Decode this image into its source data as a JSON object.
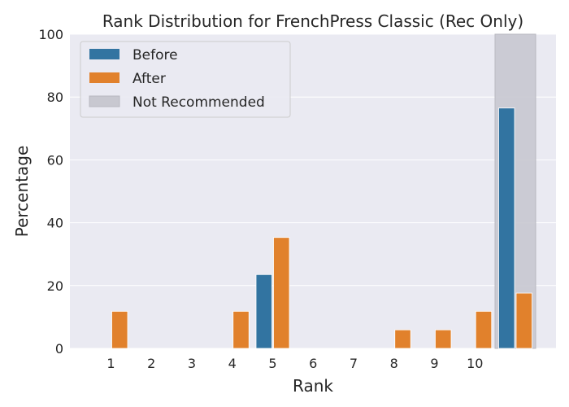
{
  "chart_data": {
    "type": "bar",
    "title": "Rank Distribution for FrenchPress Classic (Rec Only)",
    "xlabel": "Rank",
    "ylabel": "Percentage",
    "ylim": [
      0,
      100
    ],
    "yticks": [
      0,
      20,
      40,
      60,
      80,
      100
    ],
    "categories": [
      "1",
      "2",
      "3",
      "4",
      "5",
      "6",
      "7",
      "8",
      "9",
      "10",
      "Not Recommended"
    ],
    "tick_labels": [
      "1",
      "2",
      "3",
      "4",
      "5",
      "6",
      "7",
      "8",
      "9",
      "10",
      ""
    ],
    "series": [
      {
        "name": "Before",
        "color": "#3274a1",
        "values": [
          0,
          0,
          0,
          0,
          23.5,
          0,
          0,
          0,
          0,
          0,
          76.5
        ]
      },
      {
        "name": "After",
        "color": "#e1812c",
        "values": [
          11.8,
          0,
          0,
          11.8,
          35.3,
          0,
          0,
          5.9,
          5.9,
          11.8,
          17.6
        ]
      }
    ],
    "highlight": {
      "category": "Not Recommended",
      "label": "Not Recommended",
      "color": "#c8c8d0"
    },
    "legend": {
      "placement": "top-left"
    },
    "grid": true,
    "background": "#eaeaf2",
    "grid_color": "#ffffff"
  }
}
